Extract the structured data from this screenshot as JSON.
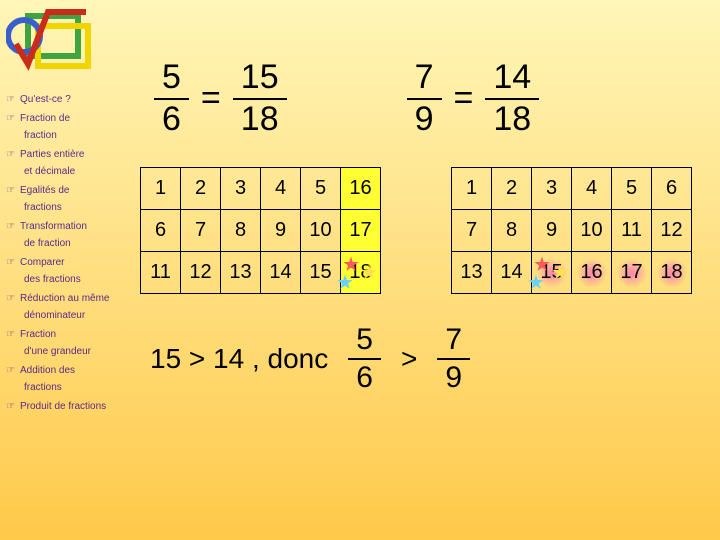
{
  "colors": {
    "bg_top": "#fff6b8",
    "bg_bottom": "#ffc94a",
    "nav_text": "#5b2a8a",
    "highlight_yellow": "#ffff33",
    "star1": "#ff5a5a",
    "star2": "#ffe24a",
    "star3": "#6ad1ff",
    "logo_green": "#3fa33f",
    "logo_yellow": "#f2d400",
    "logo_red": "#cc2a1a",
    "logo_blue": "#3a5fcc"
  },
  "nav": {
    "i0": "Qu'est-ce ?",
    "i1": "Fraction de",
    "c1": "fraction",
    "i2": "Parties entière",
    "c2": "et décimale",
    "i3": "Egalités de",
    "c3": "fractions",
    "i4": "Transformation",
    "c4": "de fraction",
    "i5": "Comparer",
    "c5": "des fractions",
    "i6": "Réduction au même",
    "c6": "dénominateur",
    "i7": "Fraction",
    "c7": "d'une grandeur",
    "i8": "Addition des",
    "c8": "fractions",
    "i9": "Produit de fractions"
  },
  "eq1": {
    "a_num": "5",
    "a_den": "6",
    "op": "=",
    "b_num": "15",
    "b_den": "18"
  },
  "eq2": {
    "a_num": "7",
    "a_den": "9",
    "op": "=",
    "b_num": "14",
    "b_den": "18"
  },
  "grid1": {
    "rows": [
      [
        "1",
        "2",
        "3",
        "4",
        "5",
        "16"
      ],
      [
        "6",
        "7",
        "8",
        "9",
        "10",
        "17"
      ],
      [
        "11",
        "12",
        "13",
        "14",
        "15",
        "18"
      ]
    ],
    "highlight_col": 5,
    "star_cell": [
      2,
      5
    ]
  },
  "grid2": {
    "rows": [
      [
        "1",
        "2",
        "3",
        "4",
        "5",
        "6"
      ],
      [
        "7",
        "8",
        "9",
        "10",
        "11",
        "12"
      ],
      [
        "13",
        "14",
        "15",
        "16",
        "17",
        "18"
      ]
    ],
    "highlight_row": 2,
    "highlight_from_col": 2,
    "star_cell": [
      2,
      2
    ]
  },
  "conclusion": {
    "text": "15 > 14 , donc",
    "left_num": "5",
    "left_den": "6",
    "cmp": ">",
    "right_num": "7",
    "right_den": "9"
  }
}
